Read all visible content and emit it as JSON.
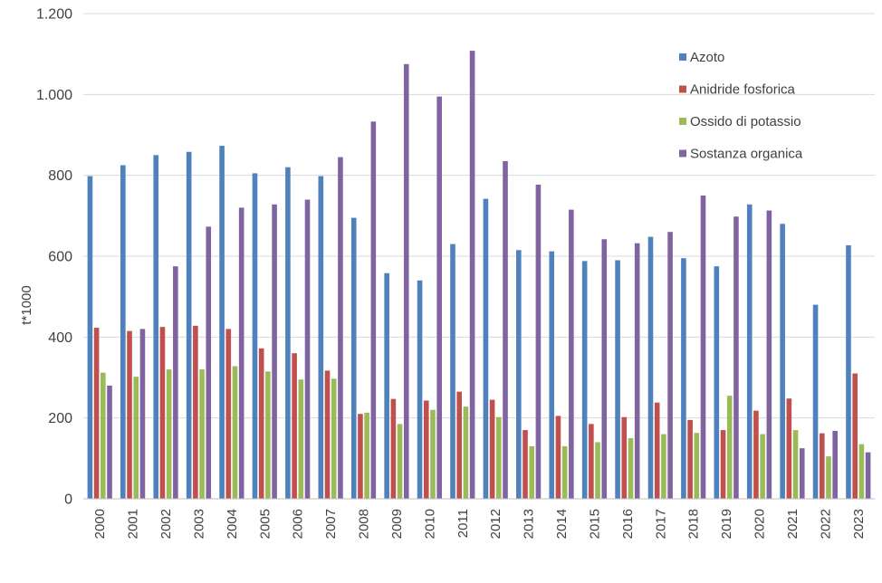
{
  "chart_data": {
    "type": "bar",
    "title": "",
    "xlabel": "",
    "ylabel": "t*1000",
    "ylim": [
      0,
      1200
    ],
    "yticks": [
      0,
      200,
      400,
      600,
      800,
      1000,
      1200
    ],
    "ytick_labels": [
      "0",
      "200",
      "400",
      "600",
      "800",
      "1.000",
      "1.200"
    ],
    "grid": true,
    "legend_position": "top-right",
    "categories": [
      "2000",
      "2001",
      "2002",
      "2003",
      "2004",
      "2005",
      "2006",
      "2007",
      "2008",
      "2009",
      "2010",
      "2011",
      "2012",
      "2013",
      "2014",
      "2015",
      "2016",
      "2017",
      "2018",
      "2019",
      "2020",
      "2021",
      "2022",
      "2023"
    ],
    "series": [
      {
        "name": "Azoto",
        "color": "#4f81bd",
        "values": [
          798,
          825,
          850,
          858,
          873,
          805,
          820,
          798,
          695,
          558,
          540,
          630,
          742,
          615,
          612,
          588,
          590,
          648,
          595,
          575,
          728,
          680,
          480,
          627
        ]
      },
      {
        "name": "Anidride  fosforica",
        "color": "#c0504d",
        "values": [
          423,
          415,
          425,
          428,
          420,
          372,
          360,
          317,
          210,
          247,
          243,
          265,
          245,
          170,
          205,
          185,
          202,
          238,
          195,
          170,
          218,
          248,
          162,
          310
        ]
      },
      {
        "name": "Ossido di  potassio",
        "color": "#9bbb59",
        "values": [
          312,
          302,
          320,
          320,
          328,
          315,
          295,
          297,
          213,
          185,
          220,
          228,
          202,
          130,
          130,
          140,
          150,
          160,
          163,
          255,
          160,
          170,
          105,
          135
        ]
      },
      {
        "name": "Sostanza  organica",
        "color": "#8064a2",
        "values": [
          280,
          420,
          575,
          673,
          720,
          728,
          740,
          845,
          933,
          1075,
          995,
          1108,
          835,
          777,
          715,
          642,
          632,
          660,
          750,
          698,
          713,
          125,
          168,
          115
        ]
      }
    ]
  }
}
